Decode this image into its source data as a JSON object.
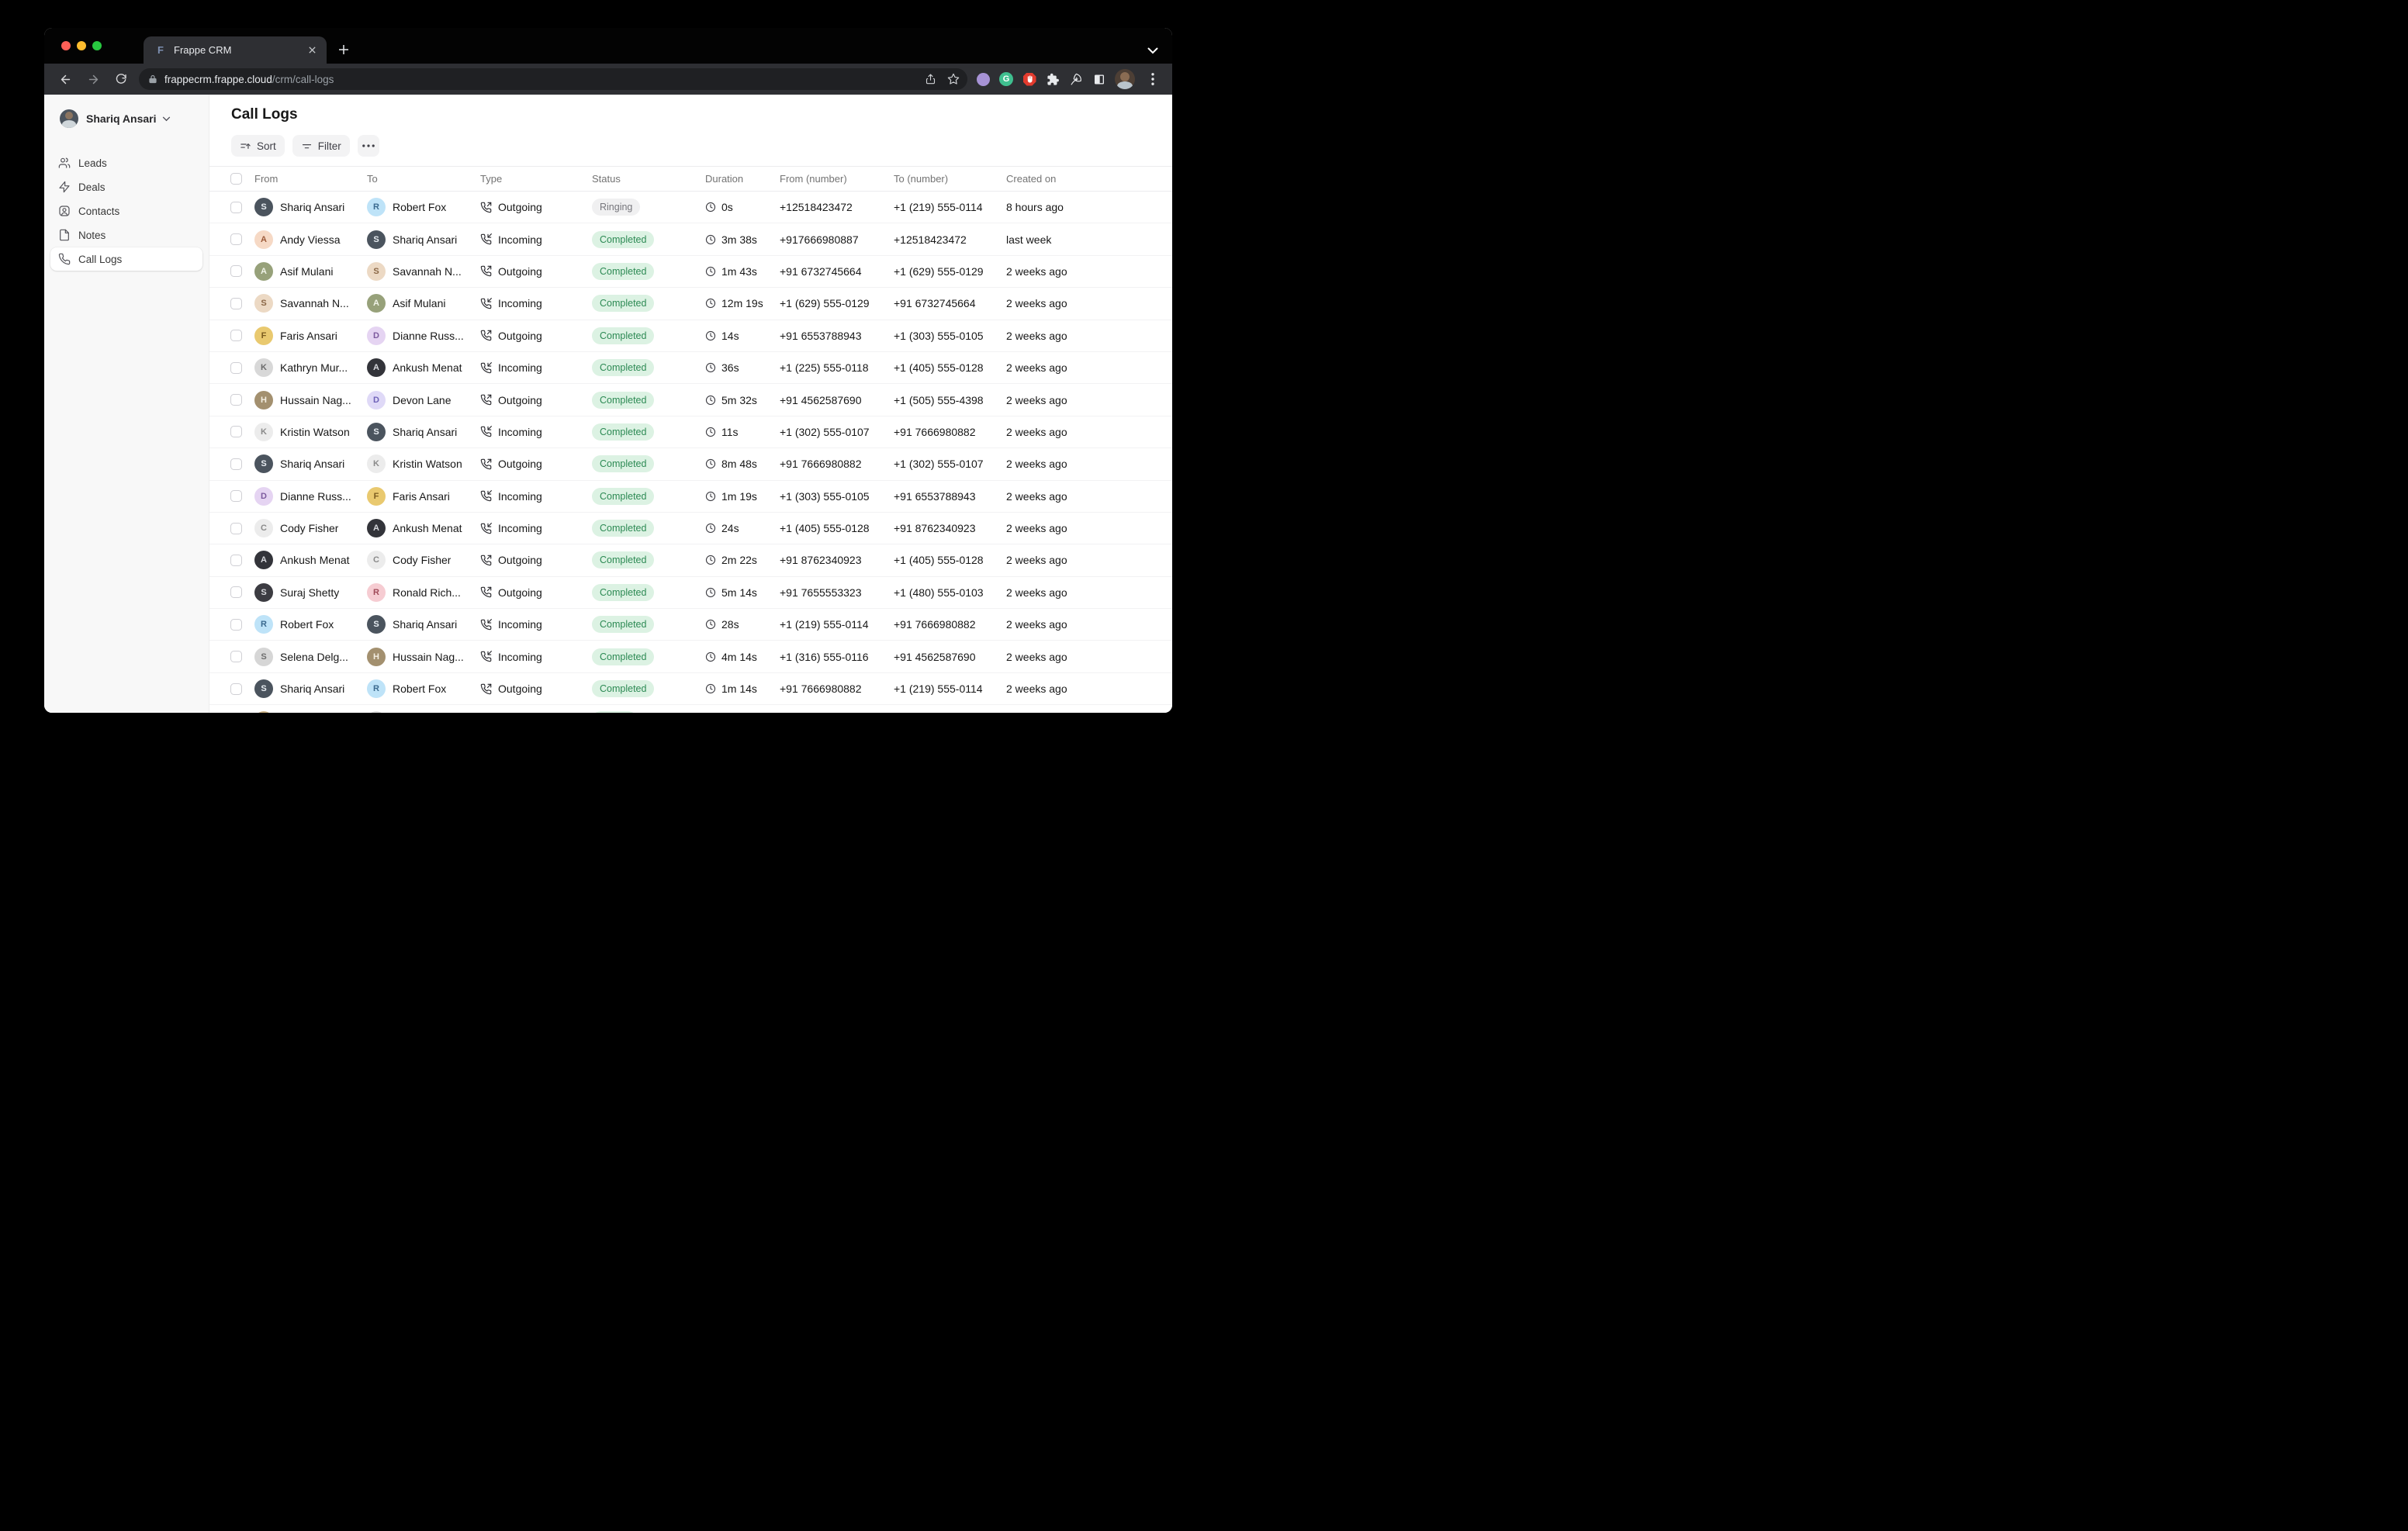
{
  "browser": {
    "tab_title": "Frappe CRM",
    "favicon_letter": "F",
    "url_host": "frappecrm.frappe.cloud",
    "url_path": "/crm/call-logs",
    "grammarly_letter": "G"
  },
  "sidebar": {
    "user_name": "Shariq Ansari",
    "items": [
      {
        "id": "leads",
        "label": "Leads",
        "icon": "users",
        "active": false
      },
      {
        "id": "deals",
        "label": "Deals",
        "icon": "zap",
        "active": false
      },
      {
        "id": "contacts",
        "label": "Contacts",
        "icon": "contact",
        "active": false
      },
      {
        "id": "notes",
        "label": "Notes",
        "icon": "file",
        "active": false
      },
      {
        "id": "call-logs",
        "label": "Call Logs",
        "icon": "phone",
        "active": true
      }
    ]
  },
  "header": {
    "title": "Call Logs",
    "sort_label": "Sort",
    "filter_label": "Filter"
  },
  "colors": {
    "completed_bg": "#dcf2e3",
    "completed_fg": "#2d8a54",
    "ringing_bg": "#f0f0f1",
    "ringing_fg": "#76767c"
  },
  "table": {
    "columns": [
      "From",
      "To",
      "Type",
      "Status",
      "Duration",
      "From (number)",
      "To (number)",
      "Created on"
    ],
    "rows": [
      {
        "from": {
          "name": "Shariq Ansari",
          "initial": "S",
          "bg": "#4b545e",
          "fg": "#e8edf2"
        },
        "to": {
          "name": "Robert Fox",
          "initial": "R",
          "bg": "#bee3f8",
          "fg": "#3b6a8f"
        },
        "type": "Outgoing",
        "status": "Ringing",
        "status_type": "ringing",
        "duration": "0s",
        "from_number": "+12518423472",
        "to_number": "+1 (219) 555-0114",
        "created": "8 hours ago"
      },
      {
        "from": {
          "name": "Andy Viessa",
          "initial": "A",
          "bg": "#f6d9c5",
          "fg": "#9c5b3a"
        },
        "to": {
          "name": "Shariq Ansari",
          "initial": "S",
          "bg": "#4b545e",
          "fg": "#e8edf2"
        },
        "type": "Incoming",
        "status": "Completed",
        "status_type": "completed",
        "duration": "3m 38s",
        "from_number": "+917666980887",
        "to_number": "+12518423472",
        "created": "last week"
      },
      {
        "from": {
          "name": "Asif Mulani",
          "initial": "A",
          "bg": "#97a17a",
          "fg": "#f0f3e8"
        },
        "to": {
          "name": "Savannah N...",
          "initial": "S",
          "bg": "#ecd9c4",
          "fg": "#8a6746"
        },
        "type": "Outgoing",
        "status": "Completed",
        "status_type": "completed",
        "duration": "1m 43s",
        "from_number": "+91 6732745664",
        "to_number": "+1 (629) 555-0129",
        "created": "2 weeks ago"
      },
      {
        "from": {
          "name": "Savannah N...",
          "initial": "S",
          "bg": "#ecd9c4",
          "fg": "#8a6746"
        },
        "to": {
          "name": "Asif Mulani",
          "initial": "A",
          "bg": "#97a17a",
          "fg": "#f0f3e8"
        },
        "type": "Incoming",
        "status": "Completed",
        "status_type": "completed",
        "duration": "12m 19s",
        "from_number": "+1 (629) 555-0129",
        "to_number": "+91 6732745664",
        "created": "2 weeks ago"
      },
      {
        "from": {
          "name": "Faris Ansari",
          "initial": "F",
          "bg": "#e9c96f",
          "fg": "#7a5b1f"
        },
        "to": {
          "name": "Dianne Russ...",
          "initial": "D",
          "bg": "#e5d4f2",
          "fg": "#7d5a9e"
        },
        "type": "Outgoing",
        "status": "Completed",
        "status_type": "completed",
        "duration": "14s",
        "from_number": "+91 6553788943",
        "to_number": "+1 (303) 555-0105",
        "created": "2 weeks ago"
      },
      {
        "from": {
          "name": "Kathryn Mur...",
          "initial": "K",
          "bg": "#d8d8d8",
          "fg": "#6b6b6b"
        },
        "to": {
          "name": "Ankush Menat",
          "initial": "A",
          "bg": "#33343a",
          "fg": "#d7d9de"
        },
        "type": "Incoming",
        "status": "Completed",
        "status_type": "completed",
        "duration": "36s",
        "from_number": "+1 (225) 555-0118",
        "to_number": "+1 (405) 555-0128",
        "created": "2 weeks ago"
      },
      {
        "from": {
          "name": "Hussain Nag...",
          "initial": "H",
          "bg": "#a3906f",
          "fg": "#f3eee2"
        },
        "to": {
          "name": "Devon Lane",
          "initial": "D",
          "bg": "#dfd9f7",
          "fg": "#6f62b8"
        },
        "type": "Outgoing",
        "status": "Completed",
        "status_type": "completed",
        "duration": "5m 32s",
        "from_number": "+91 4562587690",
        "to_number": "+1 (505) 555-4398",
        "created": "2 weeks ago"
      },
      {
        "from": {
          "name": "Kristin Watson",
          "initial": "K",
          "bg": "#ececec",
          "fg": "#8a8a8a"
        },
        "to": {
          "name": "Shariq Ansari",
          "initial": "S",
          "bg": "#4b545e",
          "fg": "#e8edf2"
        },
        "type": "Incoming",
        "status": "Completed",
        "status_type": "completed",
        "duration": "11s",
        "from_number": "+1 (302) 555-0107",
        "to_number": "+91 7666980882",
        "created": "2 weeks ago"
      },
      {
        "from": {
          "name": "Shariq Ansari",
          "initial": "S",
          "bg": "#4b545e",
          "fg": "#e8edf2"
        },
        "to": {
          "name": "Kristin Watson",
          "initial": "K",
          "bg": "#ececec",
          "fg": "#8a8a8a"
        },
        "type": "Outgoing",
        "status": "Completed",
        "status_type": "completed",
        "duration": "8m 48s",
        "from_number": "+91 7666980882",
        "to_number": "+1 (302) 555-0107",
        "created": "2 weeks ago"
      },
      {
        "from": {
          "name": "Dianne Russ...",
          "initial": "D",
          "bg": "#e5d4f2",
          "fg": "#7d5a9e"
        },
        "to": {
          "name": "Faris Ansari",
          "initial": "F",
          "bg": "#e9c96f",
          "fg": "#7a5b1f"
        },
        "type": "Incoming",
        "status": "Completed",
        "status_type": "completed",
        "duration": "1m 19s",
        "from_number": "+1 (303) 555-0105",
        "to_number": "+91 6553788943",
        "created": "2 weeks ago"
      },
      {
        "from": {
          "name": "Cody Fisher",
          "initial": "C",
          "bg": "#ececec",
          "fg": "#8a8a8a"
        },
        "to": {
          "name": "Ankush Menat",
          "initial": "A",
          "bg": "#33343a",
          "fg": "#d7d9de"
        },
        "type": "Incoming",
        "status": "Completed",
        "status_type": "completed",
        "duration": "24s",
        "from_number": "+1 (405) 555-0128",
        "to_number": "+91 8762340923",
        "created": "2 weeks ago"
      },
      {
        "from": {
          "name": "Ankush Menat",
          "initial": "A",
          "bg": "#33343a",
          "fg": "#d7d9de"
        },
        "to": {
          "name": "Cody Fisher",
          "initial": "C",
          "bg": "#ececec",
          "fg": "#8a8a8a"
        },
        "type": "Outgoing",
        "status": "Completed",
        "status_type": "completed",
        "duration": "2m 22s",
        "from_number": "+91 8762340923",
        "to_number": "+1 (405) 555-0128",
        "created": "2 weeks ago"
      },
      {
        "from": {
          "name": "Suraj Shetty",
          "initial": "S",
          "bg": "#3c3c42",
          "fg": "#d9dade"
        },
        "to": {
          "name": "Ronald Rich...",
          "initial": "R",
          "bg": "#f6ccd2",
          "fg": "#a04a58"
        },
        "type": "Outgoing",
        "status": "Completed",
        "status_type": "completed",
        "duration": "5m 14s",
        "from_number": "+91 7655553323",
        "to_number": "+1 (480) 555-0103",
        "created": "2 weeks ago"
      },
      {
        "from": {
          "name": "Robert Fox",
          "initial": "R",
          "bg": "#bee3f8",
          "fg": "#3b6a8f"
        },
        "to": {
          "name": "Shariq Ansari",
          "initial": "S",
          "bg": "#4b545e",
          "fg": "#e8edf2"
        },
        "type": "Incoming",
        "status": "Completed",
        "status_type": "completed",
        "duration": "28s",
        "from_number": "+1 (219) 555-0114",
        "to_number": "+91 7666980882",
        "created": "2 weeks ago"
      },
      {
        "from": {
          "name": "Selena Delg...",
          "initial": "S",
          "bg": "#d6d6d6",
          "fg": "#6d6d6d"
        },
        "to": {
          "name": "Hussain Nag...",
          "initial": "H",
          "bg": "#a3906f",
          "fg": "#f3eee2"
        },
        "type": "Incoming",
        "status": "Completed",
        "status_type": "completed",
        "duration": "4m 14s",
        "from_number": "+1 (316) 555-0116",
        "to_number": "+91 4562587690",
        "created": "2 weeks ago"
      },
      {
        "from": {
          "name": "Shariq Ansari",
          "initial": "S",
          "bg": "#4b545e",
          "fg": "#e8edf2"
        },
        "to": {
          "name": "Robert Fox",
          "initial": "R",
          "bg": "#bee3f8",
          "fg": "#3b6a8f"
        },
        "type": "Outgoing",
        "status": "Completed",
        "status_type": "completed",
        "duration": "1m 14s",
        "from_number": "+91 7666980882",
        "to_number": "+1 (219) 555-0114",
        "created": "2 weeks ago"
      },
      {
        "from": {
          "name": "",
          "initial": "",
          "bg": "#c9b184",
          "fg": "#6f5b2e"
        },
        "to": {
          "name": "",
          "initial": "",
          "bg": "#dcdcdc",
          "fg": "#9a9a9a"
        },
        "type": "",
        "status": "",
        "status_type": "completed",
        "duration": "",
        "from_number": "",
        "to_number": "",
        "created": ""
      }
    ]
  }
}
